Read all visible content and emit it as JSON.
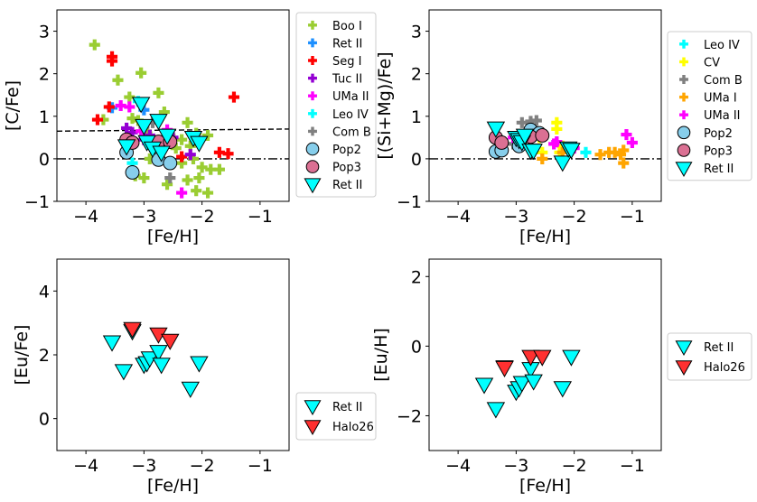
{
  "chart_data": [
    {
      "id": "cfe",
      "type": "scatter",
      "xlabel": "[Fe/H]",
      "ylabel": "[C/Fe]",
      "xlim": [
        -4.5,
        -0.5
      ],
      "ylim": [
        -1,
        3.5
      ],
      "xticks": [
        -4,
        -3,
        -2,
        -1
      ],
      "yticks": [
        -1,
        0,
        1,
        2,
        3
      ],
      "tick_labels_x": [
        "−4",
        "−3",
        "−2",
        "−1"
      ],
      "tick_labels_y": [
        "−1",
        "0",
        "1",
        "2",
        "3"
      ],
      "reference_lines": [
        {
          "style": "dashed",
          "points": [
            [
              -4.5,
              0.65
            ],
            [
              -0.5,
              0.7
            ]
          ]
        },
        {
          "style": "dashdot",
          "points": [
            [
              -4.5,
              0.0
            ],
            [
              -0.5,
              0.0
            ]
          ]
        }
      ],
      "legend_position": "outside-right-top",
      "series": [
        {
          "name": "Boo I",
          "marker": "plus",
          "color": "#9acd32",
          "points": [
            [
              -3.85,
              2.68
            ],
            [
              -3.7,
              0.92
            ],
            [
              -3.45,
              1.85
            ],
            [
              -3.25,
              1.45
            ],
            [
              -3.05,
              2.02
            ],
            [
              -3.2,
              0.95
            ],
            [
              -2.95,
              0.6
            ],
            [
              -2.75,
              1.55
            ],
            [
              -2.65,
              1.1
            ],
            [
              -3.1,
              0.9
            ],
            [
              -2.55,
              0.55
            ],
            [
              -2.45,
              0.25
            ],
            [
              -2.35,
              0.45
            ],
            [
              -2.25,
              0.85
            ],
            [
              -2.2,
              0.3
            ],
            [
              -2.15,
              0.0
            ],
            [
              -2.1,
              0.6
            ],
            [
              -2.0,
              -0.2
            ],
            [
              -1.9,
              0.55
            ],
            [
              -1.85,
              -0.25
            ],
            [
              -1.7,
              -0.25
            ],
            [
              -2.05,
              -0.45
            ],
            [
              -2.25,
              -0.5
            ],
            [
              -1.9,
              -0.8
            ],
            [
              -2.1,
              -0.75
            ],
            [
              -3.0,
              -0.45
            ],
            [
              -3.15,
              -0.4
            ],
            [
              -2.6,
              -0.6
            ],
            [
              -2.35,
              -0.1
            ],
            [
              -2.8,
              0.3
            ],
            [
              -2.9,
              0.0
            ]
          ]
        },
        {
          "name": "Ret II",
          "marker": "plus",
          "color": "#1e90ff",
          "points": [
            [
              -3.55,
              1.2
            ],
            [
              -3.0,
              1.15
            ],
            [
              -2.75,
              0.0
            ],
            [
              -2.1,
              0.5
            ]
          ]
        },
        {
          "name": "Seg I",
          "marker": "plus",
          "color": "#ff0000",
          "points": [
            [
              -3.55,
              2.4
            ],
            [
              -3.55,
              2.3
            ],
            [
              -3.8,
              0.92
            ],
            [
              -3.6,
              1.22
            ],
            [
              -1.45,
              1.45
            ],
            [
              -1.7,
              0.15
            ],
            [
              -1.55,
              0.12
            ],
            [
              -2.35,
              0.05
            ]
          ]
        },
        {
          "name": "Tuc II",
          "marker": "plus",
          "color": "#9400d3",
          "points": [
            [
              -3.3,
              0.72
            ],
            [
              -3.2,
              0.62
            ],
            [
              -3.0,
              0.45
            ],
            [
              -2.9,
              0.55
            ],
            [
              -2.5,
              0.5
            ],
            [
              -2.2,
              0.1
            ]
          ]
        },
        {
          "name": "UMa II",
          "marker": "plus",
          "color": "#ff00ff",
          "points": [
            [
              -3.4,
              1.25
            ],
            [
              -3.25,
              1.22
            ],
            [
              -3.05,
              0.65
            ],
            [
              -2.6,
              0.68
            ],
            [
              -2.35,
              -0.8
            ]
          ]
        },
        {
          "name": "Leo IV",
          "marker": "plus",
          "color": "#00ffff",
          "points": [
            [
              -3.1,
              1.35
            ],
            [
              -3.2,
              -0.1
            ]
          ]
        },
        {
          "name": "Com B",
          "marker": "plus",
          "color": "#808080",
          "points": [
            [
              -3.0,
              0.75
            ],
            [
              -2.7,
              0.2
            ],
            [
              -2.55,
              -0.45
            ],
            [
              -2.85,
              0.85
            ]
          ]
        },
        {
          "name": "Pop2",
          "marker": "circle",
          "color": "#87ceeb",
          "points": [
            [
              -3.3,
              0.15
            ],
            [
              -3.2,
              -0.32
            ],
            [
              -2.75,
              -0.02
            ],
            [
              -2.55,
              -0.1
            ]
          ]
        },
        {
          "name": "Pop3",
          "marker": "circle",
          "color": "#db7093",
          "points": [
            [
              -3.3,
              0.45
            ],
            [
              -3.2,
              0.38
            ],
            [
              -2.75,
              0.4
            ],
            [
              -2.55,
              0.4
            ]
          ]
        },
        {
          "name": "Ret II",
          "marker": "triangle",
          "color": "#00ffff",
          "points": [
            [
              -3.05,
              1.3
            ],
            [
              -3.0,
              0.78
            ],
            [
              -2.75,
              0.9
            ],
            [
              -2.95,
              0.4
            ],
            [
              -3.3,
              0.3
            ],
            [
              -2.6,
              0.55
            ],
            [
              -2.15,
              0.5
            ],
            [
              -2.05,
              0.38
            ],
            [
              -2.85,
              0.25
            ],
            [
              -2.7,
              0.15
            ]
          ]
        }
      ]
    },
    {
      "id": "simgfe",
      "type": "scatter",
      "xlabel": "[Fe/H]",
      "ylabel": "[(Si+Mg)/Fe]",
      "xlim": [
        -4.5,
        -0.5
      ],
      "ylim": [
        -1,
        3.5
      ],
      "xticks": [
        -4,
        -3,
        -2,
        -1
      ],
      "yticks": [
        -1,
        0,
        1,
        2,
        3
      ],
      "tick_labels_x": [
        "−4",
        "−3",
        "−2",
        "−1"
      ],
      "tick_labels_y": [
        "−1",
        "0",
        "1",
        "2",
        "3"
      ],
      "reference_lines": [
        {
          "style": "dashdot",
          "points": [
            [
              -4.5,
              0.0
            ],
            [
              -0.5,
              0.0
            ]
          ]
        }
      ],
      "legend_position": "outside-right-top",
      "series": [
        {
          "name": "Leo IV",
          "marker": "plus",
          "color": "#00ffff",
          "points": [
            [
              -1.8,
              0.15
            ],
            [
              -2.3,
              0.4
            ],
            [
              -2.8,
              0.6
            ]
          ]
        },
        {
          "name": "CV",
          "marker": "plus",
          "color": "#ffff00",
          "points": [
            [
              -2.3,
              0.85
            ],
            [
              -2.3,
              0.7
            ],
            [
              -2.6,
              0.5
            ],
            [
              -2.55,
              0.15
            ],
            [
              -2.25,
              0.15
            ],
            [
              -2.2,
              0.3
            ]
          ]
        },
        {
          "name": "Com B",
          "marker": "plus",
          "color": "#808080",
          "points": [
            [
              -2.9,
              0.85
            ],
            [
              -2.75,
              0.88
            ],
            [
              -2.65,
              0.9
            ],
            [
              -2.9,
              0.55
            ],
            [
              -2.95,
              0.45
            ],
            [
              -3.05,
              0.35
            ]
          ]
        },
        {
          "name": "UMa I",
          "marker": "plus",
          "color": "#ffa500",
          "points": [
            [
              -2.55,
              0.0
            ],
            [
              -1.55,
              0.1
            ],
            [
              -1.4,
              0.15
            ],
            [
              -1.3,
              0.15
            ],
            [
              -1.2,
              0.1
            ],
            [
              -1.15,
              -0.1
            ],
            [
              -2.2,
              0.15
            ],
            [
              -1.15,
              0.2
            ]
          ]
        },
        {
          "name": "UMa II",
          "marker": "plus",
          "color": "#ff00ff",
          "points": [
            [
              -2.35,
              0.35
            ],
            [
              -2.3,
              0.4
            ],
            [
              -2.0,
              0.25
            ],
            [
              -1.1,
              0.57
            ],
            [
              -1.0,
              0.38
            ],
            [
              -3.05,
              0.5
            ]
          ]
        },
        {
          "name": "Pop2",
          "marker": "circle",
          "color": "#87ceeb",
          "points": [
            [
              -3.35,
              0.17
            ],
            [
              -3.25,
              0.2
            ],
            [
              -2.75,
              0.68
            ],
            [
              -2.6,
              0.6
            ],
            [
              -2.95,
              0.3
            ]
          ]
        },
        {
          "name": "Pop3",
          "marker": "circle",
          "color": "#db7093",
          "points": [
            [
              -3.35,
              0.5
            ],
            [
              -3.25,
              0.38
            ],
            [
              -2.75,
              0.52
            ],
            [
              -2.55,
              0.55
            ]
          ]
        },
        {
          "name": "Ret II",
          "marker": "triangle",
          "color": "#00ffff",
          "points": [
            [
              -3.35,
              0.72
            ],
            [
              -3.0,
              0.5
            ],
            [
              -2.95,
              0.45
            ],
            [
              -2.9,
              0.4
            ],
            [
              -2.85,
              0.55
            ],
            [
              -2.75,
              0.2
            ],
            [
              -2.7,
              0.2
            ],
            [
              -2.2,
              -0.08
            ],
            [
              -2.1,
              0.25
            ],
            [
              -2.05,
              0.22
            ]
          ]
        }
      ]
    },
    {
      "id": "eufe",
      "type": "scatter",
      "xlabel": "[Fe/H]",
      "ylabel": "[Eu/Fe]",
      "xlim": [
        -4.5,
        -0.5
      ],
      "ylim": [
        -1,
        5
      ],
      "xticks": [
        -4,
        -3,
        -2,
        -1
      ],
      "yticks": [
        0,
        2,
        4
      ],
      "tick_labels_x": [
        "−4",
        "−3",
        "−2",
        "−1"
      ],
      "tick_labels_y": [
        "0",
        "2",
        "4"
      ],
      "reference_lines": [],
      "legend_position": "outside-right-bottom",
      "series": [
        {
          "name": "Ret II",
          "marker": "triangle",
          "color": "#00ffff",
          "points": [
            [
              -3.55,
              2.4
            ],
            [
              -3.35,
              1.5
            ],
            [
              -3.0,
              1.7
            ],
            [
              -2.95,
              1.75
            ],
            [
              -2.9,
              1.9
            ],
            [
              -2.75,
              2.1
            ],
            [
              -2.7,
              1.7
            ],
            [
              -2.2,
              0.95
            ],
            [
              -2.05,
              1.75
            ],
            [
              -3.2,
              2.75
            ]
          ]
        },
        {
          "name": "Halo26",
          "marker": "triangle",
          "color": "#ff3030",
          "points": [
            [
              -3.2,
              2.82
            ],
            [
              -2.75,
              2.65
            ],
            [
              -2.55,
              2.45
            ]
          ]
        }
      ]
    },
    {
      "id": "euh",
      "type": "scatter",
      "xlabel": "[Fe/H]",
      "ylabel": "[Eu/H]",
      "xlim": [
        -4.5,
        -0.5
      ],
      "ylim": [
        -3,
        2.5
      ],
      "xticks": [
        -4,
        -3,
        -2,
        -1
      ],
      "yticks": [
        -2,
        0,
        2
      ],
      "tick_labels_x": [
        "−4",
        "−3",
        "−2",
        "−1"
      ],
      "tick_labels_y": [
        "−2",
        "0",
        "2"
      ],
      "reference_lines": [],
      "legend_position": "outside-right-middle",
      "series": [
        {
          "name": "Ret II",
          "marker": "triangle",
          "color": "#00ffff",
          "points": [
            [
              -3.55,
              -1.1
            ],
            [
              -3.35,
              -1.8
            ],
            [
              -3.0,
              -1.3
            ],
            [
              -2.95,
              -1.2
            ],
            [
              -2.9,
              -1.05
            ],
            [
              -2.75,
              -0.65
            ],
            [
              -2.7,
              -1.0
            ],
            [
              -2.2,
              -1.2
            ],
            [
              -2.05,
              -0.3
            ],
            [
              -3.2,
              -0.6
            ]
          ]
        },
        {
          "name": "Halo26",
          "marker": "triangle",
          "color": "#ff3030",
          "points": [
            [
              -3.2,
              -0.62
            ],
            [
              -2.75,
              -0.3
            ],
            [
              -2.55,
              -0.3
            ]
          ]
        }
      ]
    }
  ]
}
